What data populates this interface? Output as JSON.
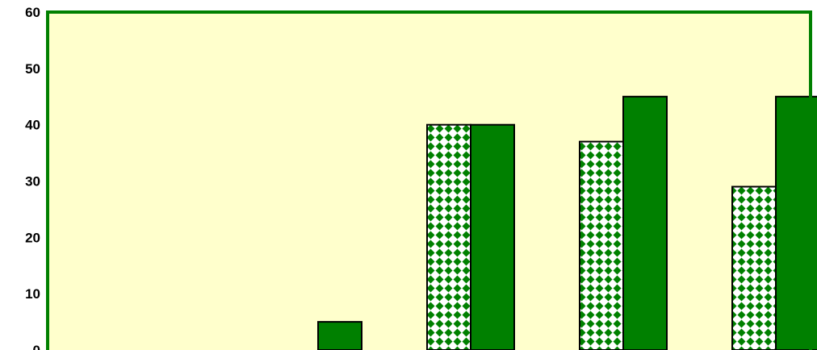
{
  "chart_data": {
    "type": "bar",
    "categories": [
      "",
      "",
      "",
      "",
      ""
    ],
    "series": [
      {
        "name": "",
        "pattern": "green-diamond-checker",
        "values": [
          0,
          0,
          40,
          37,
          29
        ]
      },
      {
        "name": "",
        "pattern": "solid",
        "values": [
          0,
          5,
          40,
          45,
          45
        ]
      }
    ],
    "ylim": [
      0,
      60
    ],
    "yticks": [
      0,
      10,
      20,
      30,
      40,
      50,
      60
    ],
    "grid": false,
    "legend": "none",
    "title": "",
    "xlabel": "",
    "ylabel": ""
  },
  "colors": {
    "plot_background": "#ffffcc",
    "plot_border": "#008000",
    "bar_fill": "#008000",
    "bar_stroke": "#000000",
    "pattern_light": "#ffffff"
  }
}
